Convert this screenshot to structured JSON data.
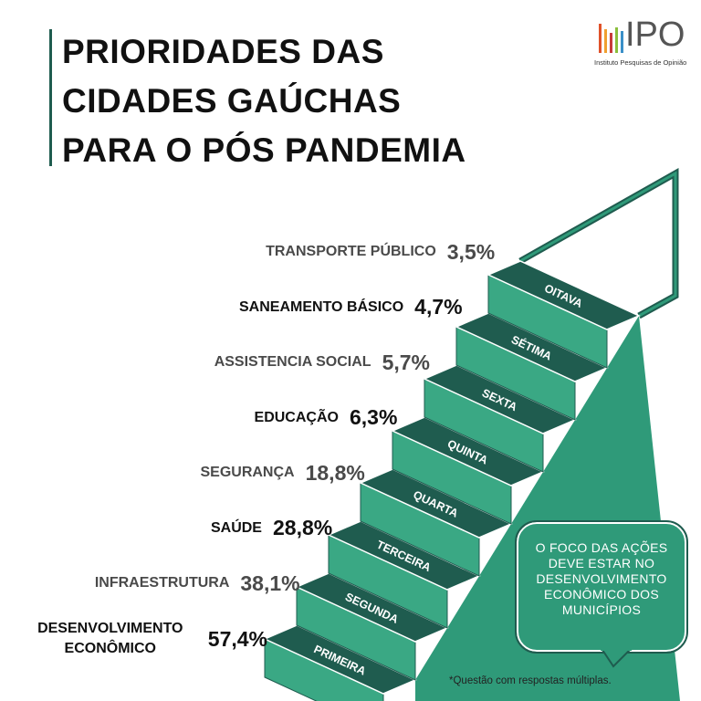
{
  "header": {
    "title_lines": [
      "PRIORIDADES DAS",
      "CIDADES GAÚCHAS",
      "PARA O PÓS PANDEMIA"
    ]
  },
  "logo": {
    "name": "IPO",
    "subtitle": "Instituto Pesquisas de Opinião"
  },
  "items": [
    {
      "label": "DESENVOLVIMENTO ECONÔMICO",
      "value": "57,4%"
    },
    {
      "label": "INFRAESTRUTURA",
      "value": "38,1%"
    },
    {
      "label": "SAÚDE",
      "value": "28,8%"
    },
    {
      "label": "SEGURANÇA",
      "value": "18,8%"
    },
    {
      "label": "EDUCAÇÃO",
      "value": "6,3%"
    },
    {
      "label": "ASSISTENCIA SOCIAL",
      "value": "5,7%"
    },
    {
      "label": "SANEAMENTO BÁSICO",
      "value": "4,7%"
    },
    {
      "label": "TRANSPORTE PÚBLICO",
      "value": "3,5%"
    }
  ],
  "steps": [
    "PRIMEIRA",
    "SEGUNDA",
    "TERCEIRA",
    "QUARTA",
    "QUINTA",
    "SEXTA",
    "SÉTIMA",
    "OITAVA"
  ],
  "callout": "O FOCO DAS AÇÕES DEVE ESTAR NO DESENVOLVIMENTO ECONÔMICO DOS MUNICÍPIOS",
  "footnote": "*Questão com respostas múltiplas."
}
